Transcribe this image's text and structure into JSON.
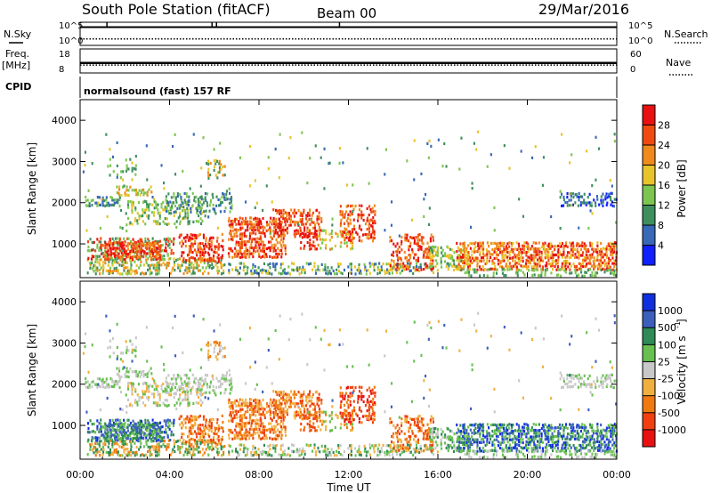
{
  "header": {
    "title": "South Pole Station (fitACF)",
    "beam": "Beam 00",
    "date": "29/Mar/2016"
  },
  "panels": {
    "nsky": {
      "left_label": "N.Sky",
      "left_ticks": [
        "10^5",
        "10^0"
      ],
      "right_label": "N.Search",
      "right_ticks": [
        "10^5",
        "10^0"
      ],
      "nsky_level_log10": 4.2,
      "nsearch_level_log10": 1.2
    },
    "freq": {
      "left_label_1": "Freq.",
      "left_label_2": "[MHz]",
      "left_ticks": [
        "18",
        "8"
      ],
      "right_label": "Nave",
      "right_ticks": [
        "60",
        "0"
      ],
      "freq_value_mhz": 12.0,
      "nave_value": 18
    },
    "cpid": {
      "label": "CPID",
      "text": "normalsound (fast) 157 RF"
    }
  },
  "chart_data": [
    {
      "type": "heatmap",
      "name": "power",
      "xlabel": "",
      "ylabel": "Slant Range [km]",
      "x_range_hours": [
        0,
        24
      ],
      "y_range_km": [
        180,
        4500
      ],
      "y_ticks": [
        "1000",
        "2000",
        "3000",
        "4000"
      ],
      "colorbar": {
        "label": "Power [dB]",
        "ticks": [
          "4",
          "8",
          "12",
          "16",
          "20",
          "24",
          "28"
        ],
        "colors": [
          "#1020ff",
          "#3868b8",
          "#3f8f5e",
          "#7cc650",
          "#e8c32a",
          "#f08a1c",
          "#f04a10",
          "#e81010"
        ]
      }
    },
    {
      "type": "heatmap",
      "name": "velocity",
      "xlabel": "Time UT",
      "ylabel": "Slant Range [km]",
      "x_range_hours": [
        0,
        24
      ],
      "x_ticks": [
        "00:00",
        "04:00",
        "08:00",
        "12:00",
        "16:00",
        "20:00",
        "00:00"
      ],
      "y_range_km": [
        180,
        4500
      ],
      "y_ticks": [
        "1000",
        "2000",
        "3000",
        "4000"
      ],
      "colorbar": {
        "label": "Velocity [m s",
        "ticks": [
          "1000",
          "500",
          "100",
          "25",
          "-25",
          "-100",
          "-500",
          "-1000"
        ],
        "colors": [
          "#1030e0",
          "#3c5fbc",
          "#2f8a55",
          "#68c050",
          "#c8c8c8",
          "#f0b040",
          "#f07a10",
          "#f04010",
          "#e81010"
        ]
      }
    }
  ]
}
